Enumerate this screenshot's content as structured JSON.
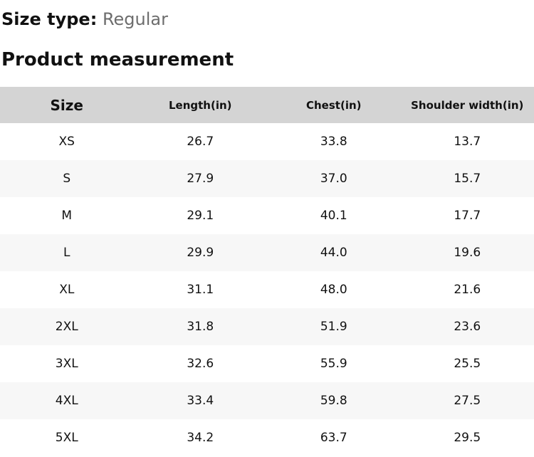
{
  "page": {
    "size_type": {
      "label": "Size type:",
      "value": "Regular"
    },
    "section_title": "Product measurement"
  },
  "table": {
    "columns": [
      "Size",
      "Length(in)",
      "Chest(in)",
      "Shoulder width(in)"
    ],
    "rows": [
      {
        "size": "XS",
        "length": "26.7",
        "chest": "33.8",
        "shoulder": "13.7"
      },
      {
        "size": "S",
        "length": "27.9",
        "chest": "37.0",
        "shoulder": "15.7"
      },
      {
        "size": "M",
        "length": "29.1",
        "chest": "40.1",
        "shoulder": "17.7"
      },
      {
        "size": "L",
        "length": "29.9",
        "chest": "44.0",
        "shoulder": "19.6"
      },
      {
        "size": "XL",
        "length": "31.1",
        "chest": "48.0",
        "shoulder": "21.6"
      },
      {
        "size": "2XL",
        "length": "31.8",
        "chest": "51.9",
        "shoulder": "23.6"
      },
      {
        "size": "3XL",
        "length": "32.6",
        "chest": "55.9",
        "shoulder": "25.5"
      },
      {
        "size": "4XL",
        "length": "33.4",
        "chest": "59.8",
        "shoulder": "27.5"
      },
      {
        "size": "5XL",
        "length": "34.2",
        "chest": "63.7",
        "shoulder": "29.5"
      }
    ]
  },
  "colors": {
    "header_bg": "#d4d4d4",
    "row_alt_bg": "#f7f7f7",
    "text_primary": "#111111",
    "text_muted": "#6d6d6d"
  }
}
